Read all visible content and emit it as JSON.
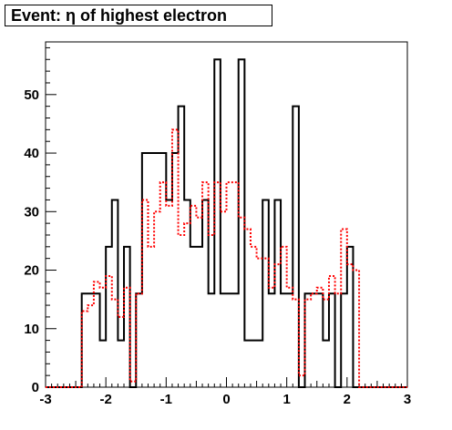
{
  "chart_data": {
    "type": "histogram",
    "title": "Event: η of highest electron",
    "xlim": [
      -3,
      3
    ],
    "ylim": [
      0,
      59
    ],
    "xticks": [
      "-3",
      "-2",
      "-1",
      "0",
      "1",
      "2",
      "3"
    ],
    "yticks": [
      "0",
      "10",
      "20",
      "30",
      "40",
      "50"
    ],
    "bin_width": 0.1,
    "series": [
      {
        "style": "solid",
        "color": "#000000",
        "bin_edges_start": -3.0,
        "values": [
          0,
          0,
          0,
          0,
          0,
          0,
          16,
          16,
          16,
          8,
          24,
          32,
          8,
          24,
          0,
          16,
          40,
          40,
          40,
          40,
          32,
          40,
          48,
          32,
          24,
          24,
          32,
          16,
          56,
          16,
          16,
          16,
          56,
          8,
          8,
          8,
          32,
          16,
          32,
          16,
          16,
          48,
          0,
          16,
          16,
          16,
          8,
          16,
          0,
          16,
          24,
          0,
          0,
          0,
          0,
          0,
          0,
          0,
          0,
          0
        ]
      },
      {
        "style": "dotted",
        "color": "#ff0000",
        "bin_edges_start": -3.0,
        "values": [
          0,
          0,
          0,
          0,
          0,
          0,
          13,
          14,
          18,
          17,
          19,
          15,
          12,
          17,
          1,
          16,
          32,
          24,
          30,
          35,
          31,
          44,
          26,
          28,
          31,
          29,
          35,
          26,
          35,
          30,
          35,
          35,
          29,
          27,
          24,
          22,
          22,
          17,
          21,
          24,
          17,
          15,
          2,
          15,
          16,
          17,
          15,
          19,
          16,
          27,
          21,
          20,
          0,
          0,
          0,
          0,
          0,
          0,
          0,
          0
        ]
      }
    ]
  }
}
